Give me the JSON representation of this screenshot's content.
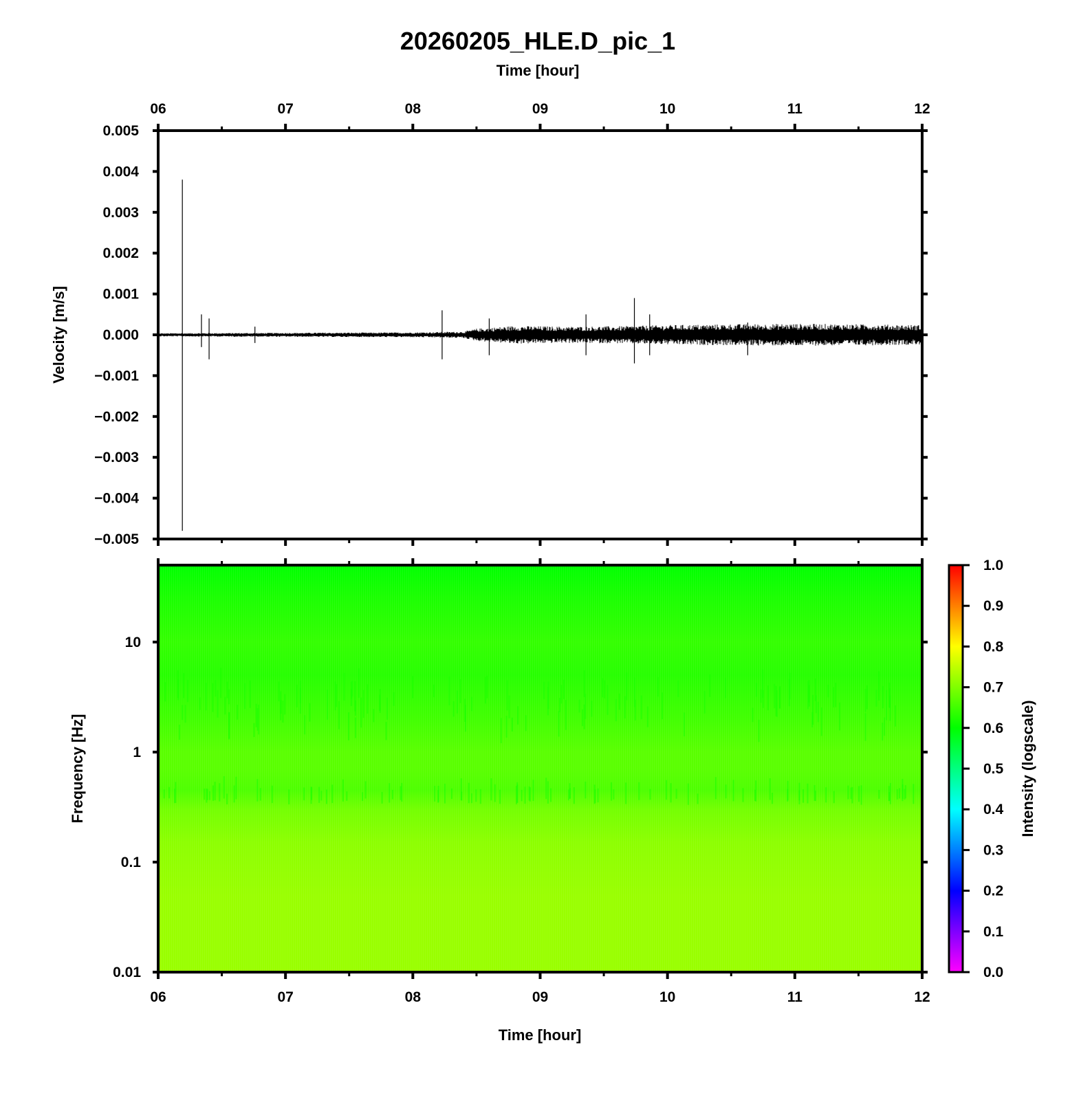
{
  "title": "20260205_HLE.D_pic_1",
  "chart_data": [
    {
      "type": "line",
      "panel": "waveform",
      "xlabel_top": "Time [hour]",
      "ylabel": "Velocity [m/s]",
      "x_tick_labels": [
        "06",
        "07",
        "08",
        "09",
        "10",
        "11",
        "12"
      ],
      "x_ticks_hours": [
        6,
        7,
        8,
        9,
        10,
        11,
        12
      ],
      "xlim_hours": [
        6,
        12
      ],
      "y_tick_labels": [
        "0.005",
        "0.004",
        "0.003",
        "0.002",
        "0.001",
        "0.000",
        "−0.001",
        "−0.002",
        "−0.003",
        "−0.004",
        "−0.005"
      ],
      "y_ticks": [
        0.005,
        0.004,
        0.003,
        0.002,
        0.001,
        0.0,
        -0.001,
        -0.002,
        -0.003,
        -0.004,
        -0.005
      ],
      "ylim": [
        -0.005,
        0.005
      ],
      "noise_envelope": {
        "x_hours": [
          6.0,
          7.0,
          8.0,
          8.4,
          8.5,
          8.8,
          9.2,
          9.6,
          10.0,
          10.5,
          11.0,
          11.5,
          12.0
        ],
        "half_amplitude": [
          4e-05,
          5e-05,
          6e-05,
          8e-05,
          0.00015,
          0.00022,
          0.0002,
          0.00021,
          0.00024,
          0.00026,
          0.00027,
          0.00026,
          0.00024
        ]
      },
      "spikes": [
        {
          "x_hours": 6.19,
          "ymax": 0.0038,
          "ymin": -0.0048
        },
        {
          "x_hours": 6.34,
          "ymax": 0.0005,
          "ymin": -0.0003
        },
        {
          "x_hours": 6.4,
          "ymax": 0.0004,
          "ymin": -0.0006
        },
        {
          "x_hours": 6.76,
          "ymax": 0.0002,
          "ymin": -0.0002
        },
        {
          "x_hours": 8.23,
          "ymax": 0.0006,
          "ymin": -0.0006
        },
        {
          "x_hours": 8.6,
          "ymax": 0.0004,
          "ymin": -0.0005
        },
        {
          "x_hours": 9.36,
          "ymax": 0.0005,
          "ymin": -0.0005
        },
        {
          "x_hours": 9.74,
          "ymax": 0.0009,
          "ymin": -0.0007
        },
        {
          "x_hours": 9.86,
          "ymax": 0.0005,
          "ymin": -0.0005
        },
        {
          "x_hours": 10.63,
          "ymax": 0.0003,
          "ymin": -0.0005
        }
      ]
    },
    {
      "type": "heatmap",
      "panel": "spectrogram",
      "xlabel": "Time [hour]",
      "ylabel": "Frequency [Hz]",
      "x_tick_labels": [
        "06",
        "07",
        "08",
        "09",
        "10",
        "11",
        "12"
      ],
      "x_ticks_hours": [
        6,
        7,
        8,
        9,
        10,
        11,
        12
      ],
      "xlim_hours": [
        6,
        12
      ],
      "yscale": "log",
      "ylim": [
        0.01,
        50
      ],
      "y_tick_labels": [
        "10",
        "1",
        "0.1",
        "0.01"
      ],
      "y_ticks": [
        10,
        1,
        0.1,
        0.01
      ],
      "intensity_profile": {
        "frequency_hz": [
          0.01,
          0.05,
          0.15,
          0.3,
          0.45,
          0.7,
          1.0,
          2.0,
          5.0,
          10.0,
          25.0,
          50.0
        ],
        "intensity": [
          0.72,
          0.72,
          0.71,
          0.69,
          0.66,
          0.67,
          0.67,
          0.65,
          0.63,
          0.64,
          0.62,
          0.6
        ]
      },
      "colorbar": {
        "label": "Intensity (logscale)",
        "range": [
          0.0,
          1.0
        ],
        "tick_labels": [
          "1.0",
          "0.9",
          "0.8",
          "0.7",
          "0.6",
          "0.5",
          "0.4",
          "0.3",
          "0.2",
          "0.1",
          "0.0"
        ],
        "ticks": [
          1.0,
          0.9,
          0.8,
          0.7,
          0.6,
          0.5,
          0.4,
          0.3,
          0.2,
          0.1,
          0.0
        ],
        "colors": [
          "#ff00ff",
          "#0000ff",
          "#00ffff",
          "#00ff00",
          "#ffff00",
          "#ff0000"
        ]
      }
    }
  ]
}
